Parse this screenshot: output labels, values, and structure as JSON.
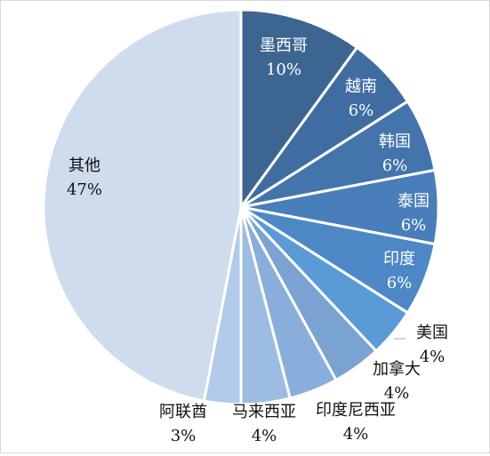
{
  "chart_data": {
    "type": "pie",
    "title": "",
    "slices": [
      {
        "label": "墨西哥",
        "value": 10,
        "value_text": "10%",
        "color": "#3d6591"
      },
      {
        "label": "越南",
        "value": 6,
        "value_text": "6%",
        "color": "#3f6da1"
      },
      {
        "label": "韩国",
        "value": 6,
        "value_text": "6%",
        "color": "#4374ac"
      },
      {
        "label": "泰国",
        "value": 6,
        "value_text": "6%",
        "color": "#487eb9"
      },
      {
        "label": "印度",
        "value": 6,
        "value_text": "6%",
        "color": "#4d87c6"
      },
      {
        "label": "美国",
        "value": 4,
        "value_text": "4%",
        "color": "#5a9bd6"
      },
      {
        "label": "加拿大",
        "value": 4,
        "value_text": "4%",
        "color": "#7aa3d2"
      },
      {
        "label": "印度尼西亚",
        "value": 4,
        "value_text": "4%",
        "color": "#8aaedb"
      },
      {
        "label": "马来西亚",
        "value": 4,
        "value_text": "4%",
        "color": "#9dbce2"
      },
      {
        "label": "阿联酋",
        "value": 3,
        "value_text": "3%",
        "color": "#b2cae9"
      },
      {
        "label": "其他",
        "value": 47,
        "value_text": "47%",
        "color": "#cfdcee"
      }
    ],
    "legend": "none",
    "label_colors": {
      "inside": "#ffffff",
      "outside": "#111111"
    }
  }
}
